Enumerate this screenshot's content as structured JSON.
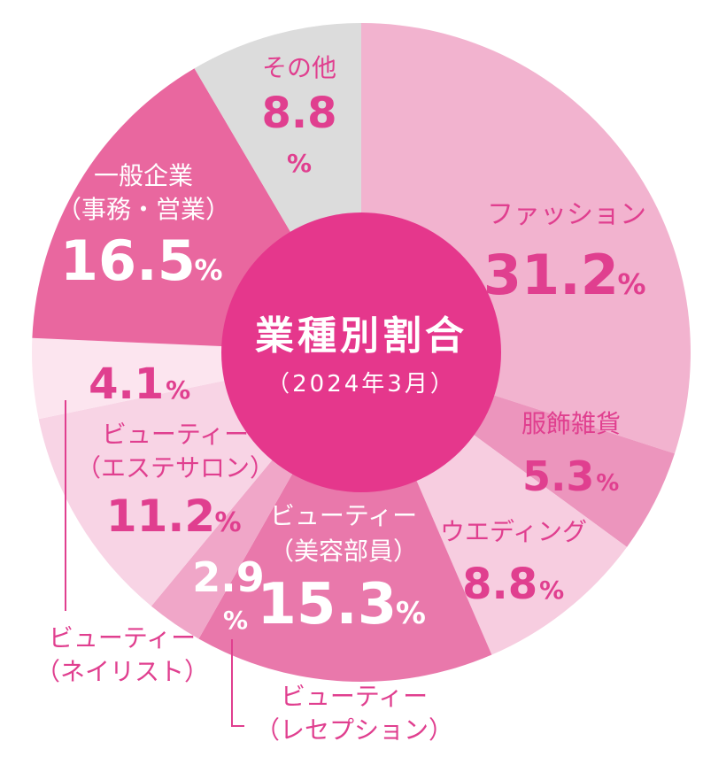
{
  "chart_data": {
    "type": "pie",
    "variant": "donut",
    "title": "業種別割合",
    "subtitle": "（2024年3月）",
    "unit": "%",
    "slices": [
      {
        "key": "fashion",
        "label_lines": [
          "ファッション"
        ],
        "value": 31.2,
        "value_text": "31.2",
        "color": "#f2b3cf",
        "text_color": "#e03f8f"
      },
      {
        "key": "apparel-goods",
        "label_lines": [
          "服飾雑貨"
        ],
        "value": 5.3,
        "value_text": "5.3",
        "color": "#ec95bd",
        "text_color": "#e03f8f"
      },
      {
        "key": "wedding",
        "label_lines": [
          "ウエディング"
        ],
        "value": 8.8,
        "value_text": "8.8",
        "color": "#f7cde0",
        "text_color": "#e03f8f"
      },
      {
        "key": "beauty-staff",
        "label_lines": [
          "ビューティー",
          "（美容部員）"
        ],
        "value": 15.3,
        "value_text": "15.3",
        "color": "#e978ab",
        "text_color": "#ffffff"
      },
      {
        "key": "beauty-reception",
        "label_lines": [
          "ビューティー",
          "（レセプション）"
        ],
        "value": 2.9,
        "value_text": "2.9",
        "color": "#f0a6c8",
        "text_color": "#ffffff"
      },
      {
        "key": "beauty-esthetic",
        "label_lines": [
          "ビューティー",
          "（エステサロン）"
        ],
        "value": 11.2,
        "value_text": "11.2",
        "color": "#f8d4e5",
        "text_color": "#e03f8f"
      },
      {
        "key": "beauty-nail",
        "label_lines": [
          "ビューティー",
          "（ネイリスト）"
        ],
        "value": 4.1,
        "value_text": "4.1",
        "color": "#fce5ef",
        "text_color": "#e03f8f"
      },
      {
        "key": "general-company",
        "label_lines": [
          "一般企業",
          "（事務・営業）"
        ],
        "value": 16.5,
        "value_text": "16.5",
        "color": "#e9679f",
        "text_color": "#ffffff"
      },
      {
        "key": "other",
        "label_lines": [
          "その他"
        ],
        "value": 8.8,
        "value_text": "8.8",
        "color": "#dcdcdc",
        "text_color": "#e03f8f"
      }
    ],
    "center_color": "#e5378c",
    "leader_line_color": "#e03f8f"
  }
}
